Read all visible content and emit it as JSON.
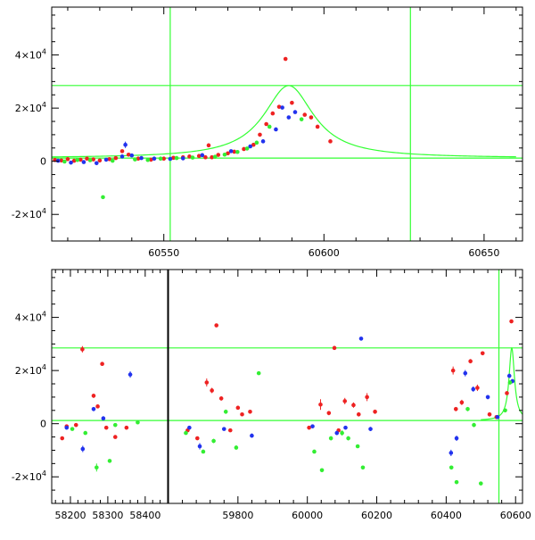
{
  "chart_data": [
    {
      "type": "scatter",
      "title": "",
      "xlabel": "",
      "ylabel": "",
      "xlim": [
        60515,
        60662
      ],
      "ylim": [
        -30000,
        58000
      ],
      "x_ticks": [
        {
          "value": 60550,
          "label": "60550"
        },
        {
          "value": 60600,
          "label": "60600"
        },
        {
          "value": 60650,
          "label": "60650"
        }
      ],
      "y_ticks": [
        {
          "value": -20000,
          "label_mantissa": "-2",
          "label_base": "×10",
          "label_exp": "4"
        },
        {
          "value": 0,
          "label_mantissa": "0"
        },
        {
          "value": 20000,
          "label_mantissa": "2",
          "label_base": "×10",
          "label_exp": "4"
        },
        {
          "value": 40000,
          "label_mantissa": "4",
          "label_base": "×10",
          "label_exp": "4"
        }
      ],
      "reference_lines": {
        "horizontal": [
          1200,
          28500
        ],
        "vertical": [
          60552,
          60627
        ],
        "color": "#33ff33"
      },
      "model_curve": {
        "color": "#33ff33",
        "baseline": 1200,
        "peak": 28500,
        "t0": 60589,
        "width": 9.5,
        "x_range": [
          60515,
          60660
        ]
      },
      "series": [
        {
          "color": "#ee2222",
          "points": [
            [
              60516,
              500,
              300
            ],
            [
              60518,
              300,
              300
            ],
            [
              60520,
              800,
              300
            ],
            [
              60522,
              200,
              300
            ],
            [
              60524,
              600,
              300
            ],
            [
              60526,
              1000,
              300
            ],
            [
              60528,
              700,
              300
            ],
            [
              60530,
              300,
              300
            ],
            [
              60533,
              800,
              300
            ],
            [
              60535,
              1200,
              300
            ],
            [
              60537,
              3800,
              500
            ],
            [
              60539,
              2500,
              400
            ],
            [
              60542,
              1000,
              300
            ],
            [
              60546,
              600,
              300
            ],
            [
              60550,
              1000,
              300
            ],
            [
              60553,
              1300,
              300
            ],
            [
              60556,
              1500,
              400
            ],
            [
              60558,
              1800,
              300
            ],
            [
              60561,
              2000,
              400
            ],
            [
              60563,
              1500,
              500
            ],
            [
              60564,
              6000,
              600
            ],
            [
              60565,
              1500,
              500
            ],
            [
              60567,
              2400,
              300
            ],
            [
              60570,
              3000,
              300
            ],
            [
              60572,
              3600,
              300
            ],
            [
              60575,
              4600,
              300
            ],
            [
              60578,
              6200,
              300
            ],
            [
              60580,
              10000,
              400
            ],
            [
              60582,
              14000,
              400
            ],
            [
              60584,
              18000,
              400
            ],
            [
              60586,
              20500,
              400
            ],
            [
              60588,
              38500,
              500
            ],
            [
              60590,
              22000,
              400
            ],
            [
              60594,
              17500,
              400
            ],
            [
              60596,
              16500,
              400
            ],
            [
              60598,
              13000,
              400
            ],
            [
              60602,
              7500,
              400
            ]
          ]
        },
        {
          "color": "#2233ee",
          "points": [
            [
              60517,
              200,
              300
            ],
            [
              60521,
              -500,
              300
            ],
            [
              60525,
              -300,
              300
            ],
            [
              60529,
              -700,
              300
            ],
            [
              60532,
              600,
              300
            ],
            [
              60537,
              1800,
              300
            ],
            [
              60538,
              6200,
              1200
            ],
            [
              60540,
              2200,
              400
            ],
            [
              60543,
              1200,
              300
            ],
            [
              60547,
              1000,
              300
            ],
            [
              60552,
              900,
              300
            ],
            [
              60556,
              1100,
              300
            ],
            [
              60562,
              2300,
              300
            ],
            [
              60571,
              3800,
              300
            ],
            [
              60577,
              5600,
              300
            ],
            [
              60581,
              7500,
              300
            ],
            [
              60585,
              12000,
              400
            ],
            [
              60587,
              20200,
              400
            ],
            [
              60589,
              16500,
              400
            ],
            [
              60591,
              18500,
              400
            ]
          ]
        },
        {
          "color": "#33ee33",
          "points": [
            [
              60519,
              -100,
              300
            ],
            [
              60523,
              500,
              300
            ],
            [
              60527,
              400,
              300
            ],
            [
              60531,
              -13500,
              300
            ],
            [
              60534,
              200,
              300
            ],
            [
              60541,
              700,
              300
            ],
            [
              60545,
              500,
              300
            ],
            [
              60549,
              1000,
              300
            ],
            [
              60554,
              1200,
              300
            ],
            [
              60559,
              1400,
              300
            ],
            [
              60566,
              1700,
              300
            ],
            [
              60569,
              2500,
              300
            ],
            [
              60573,
              3500,
              300
            ],
            [
              60576,
              4800,
              300
            ],
            [
              60579,
              7000,
              300
            ],
            [
              60583,
              13000,
              300
            ],
            [
              60593,
              15800,
              600
            ]
          ]
        }
      ]
    },
    {
      "type": "scatter",
      "title": "",
      "xlabel": "",
      "ylabel": "",
      "ylim": [
        -30000,
        58000
      ],
      "segments": [
        {
          "xlim": [
            58150,
            58460
          ],
          "x_ticks": [
            {
              "value": 58200,
              "label": "58200"
            },
            {
              "value": 58300,
              "label": "58300"
            },
            {
              "value": 58400,
              "label": "58400"
            }
          ]
        },
        {
          "xlim": [
            59600,
            60620
          ],
          "x_ticks": [
            {
              "value": 59800,
              "label": "59800"
            },
            {
              "value": 60000,
              "label": "60000"
            },
            {
              "value": 60200,
              "label": "60200"
            },
            {
              "value": 60400,
              "label": "60400"
            },
            {
              "value": 60600,
              "label": "60600"
            }
          ]
        }
      ],
      "y_ticks": [
        {
          "value": -20000,
          "label_mantissa": "-2",
          "label_base": "×10",
          "label_exp": "4"
        },
        {
          "value": 0,
          "label_mantissa": "0"
        },
        {
          "value": 20000,
          "label_mantissa": "2",
          "label_base": "×10",
          "label_exp": "4"
        },
        {
          "value": 40000,
          "label_mantissa": "4",
          "label_base": "×10",
          "label_exp": "4"
        }
      ],
      "reference_lines": {
        "horizontal": [
          1200,
          28500
        ],
        "vertical": [
          60552,
          60627
        ],
        "color": "#33ff33"
      },
      "model_curve": {
        "color": "#33ff33",
        "baseline": 1200,
        "peak": 28500,
        "t0": 60589,
        "width": 9.5,
        "x_range": [
          60500,
          60620
        ]
      },
      "series": [
        {
          "color": "#ee2222",
          "points": [
            [
              58178,
              -5500,
              600
            ],
            [
              58190,
              -1000,
              500
            ],
            [
              58215,
              -500,
              500
            ],
            [
              58232,
              28000,
              1200
            ],
            [
              58262,
              10500,
              800
            ],
            [
              58273,
              6500,
              600
            ],
            [
              58285,
              22500,
              600
            ],
            [
              58296,
              -1500,
              500
            ],
            [
              58320,
              -5000,
              500
            ],
            [
              58350,
              -1500,
              500
            ],
            [
              59655,
              -2500,
              600
            ],
            [
              59683,
              -5500,
              600
            ],
            [
              59710,
              15500,
              1500
            ],
            [
              59725,
              12500,
              1000
            ],
            [
              59738,
              37000,
              600
            ],
            [
              59752,
              9500,
              800
            ],
            [
              59778,
              -2500,
              600
            ],
            [
              59800,
              6000,
              600
            ],
            [
              59812,
              3500,
              600
            ],
            [
              59835,
              4500,
              600
            ],
            [
              60005,
              -1500,
              500
            ],
            [
              60038,
              7200,
              2000
            ],
            [
              60062,
              4000,
              800
            ],
            [
              60078,
              28500,
              600
            ],
            [
              60090,
              -2500,
              600
            ],
            [
              60108,
              8500,
              1200
            ],
            [
              60133,
              7000,
              1000
            ],
            [
              60148,
              3500,
              800
            ],
            [
              60172,
              10000,
              1500
            ],
            [
              60195,
              4500,
              800
            ],
            [
              60420,
              20000,
              1500
            ],
            [
              60428,
              5500,
              800
            ],
            [
              60445,
              8000,
              1000
            ],
            [
              60470,
              23500,
              800
            ],
            [
              60490,
              13500,
              1200
            ],
            [
              60505,
              26500,
              600
            ],
            [
              60525,
              3500,
              800
            ],
            [
              60545,
              2500,
              500
            ],
            [
              60575,
              11500,
              600
            ],
            [
              60588,
              38500,
              600
            ]
          ]
        },
        {
          "color": "#2233ee",
          "points": [
            [
              58190,
              -1500,
              500
            ],
            [
              58233,
              -9500,
              1200
            ],
            [
              58262,
              5500,
              800
            ],
            [
              58288,
              2000,
              800
            ],
            [
              58360,
              18500,
              1200
            ],
            [
              59660,
              -1500,
              500
            ],
            [
              59690,
              -8500,
              1200
            ],
            [
              59760,
              -2000,
              600
            ],
            [
              59840,
              -4500,
              800
            ],
            [
              60015,
              -1000,
              600
            ],
            [
              60085,
              -3500,
              800
            ],
            [
              60110,
              -1500,
              500
            ],
            [
              60155,
              32000,
              600
            ],
            [
              60182,
              -2000,
              800
            ],
            [
              60414,
              -11000,
              1200
            ],
            [
              60430,
              -5500,
              1000
            ],
            [
              60455,
              19000,
              1200
            ],
            [
              60478,
              13000,
              1000
            ],
            [
              60520,
              10000,
              800
            ],
            [
              60548,
              2500,
              800
            ],
            [
              60582,
              18000,
              800
            ],
            [
              60591,
              16000,
              800
            ]
          ]
        },
        {
          "color": "#33ee33",
          "points": [
            [
              58205,
              -2000,
              500
            ],
            [
              58240,
              -3500,
              600
            ],
            [
              58270,
              -16500,
              1500
            ],
            [
              58305,
              -14000,
              600
            ],
            [
              58320,
              -500,
              500
            ],
            [
              58380,
              500,
              400
            ],
            [
              59650,
              -3500,
              600
            ],
            [
              59700,
              -10500,
              600
            ],
            [
              59730,
              -6500,
              800
            ],
            [
              59765,
              4500,
              800
            ],
            [
              59795,
              -9000,
              800
            ],
            [
              59860,
              19000,
              600
            ],
            [
              60020,
              -10500,
              600
            ],
            [
              60042,
              -17500,
              600
            ],
            [
              60068,
              -5500,
              800
            ],
            [
              60100,
              -3500,
              1000
            ],
            [
              60118,
              -5500,
              800
            ],
            [
              60145,
              -8500,
              600
            ],
            [
              60160,
              -16500,
              600
            ],
            [
              60415,
              -16500,
              600
            ],
            [
              60430,
              -22000,
              600
            ],
            [
              60462,
              5500,
              800
            ],
            [
              60480,
              -500,
              800
            ],
            [
              60500,
              -22500,
              600
            ],
            [
              60570,
              5000,
              600
            ],
            [
              60584,
              15500,
              800
            ]
          ]
        }
      ]
    }
  ]
}
